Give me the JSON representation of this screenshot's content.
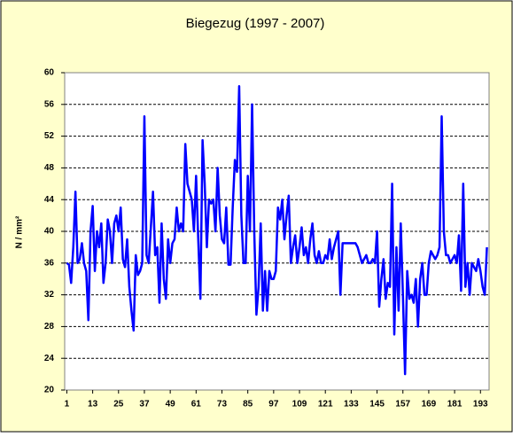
{
  "chart_data": {
    "type": "line",
    "title": "Biegezug (1997 - 2007)",
    "y_label": "N / mm²",
    "x": [
      1,
      2,
      3,
      4,
      5,
      6,
      7,
      8,
      9,
      10,
      11,
      12,
      13,
      14,
      15,
      16,
      17,
      18,
      19,
      20,
      21,
      22,
      23,
      24,
      25,
      26,
      27,
      28,
      29,
      30,
      31,
      32,
      33,
      34,
      35,
      36,
      37,
      38,
      39,
      40,
      41,
      42,
      43,
      44,
      45,
      46,
      47,
      48,
      49,
      50,
      51,
      52,
      53,
      54,
      55,
      56,
      57,
      58,
      59,
      60,
      61,
      62,
      63,
      64,
      65,
      66,
      67,
      68,
      69,
      70,
      71,
      72,
      73,
      74,
      75,
      76,
      77,
      78,
      79,
      80,
      81,
      82,
      83,
      84,
      85,
      86,
      87,
      88,
      89,
      90,
      91,
      92,
      93,
      94,
      95,
      96,
      97,
      98,
      99,
      100,
      101,
      102,
      103,
      104,
      105,
      106,
      107,
      108,
      109,
      110,
      111,
      112,
      113,
      114,
      115,
      116,
      117,
      118,
      119,
      120,
      121,
      122,
      123,
      124,
      125,
      126,
      127,
      128,
      129,
      130,
      131,
      132,
      133,
      134,
      135,
      136,
      137,
      138,
      139,
      140,
      141,
      142,
      143,
      144,
      145,
      146,
      147,
      148,
      149,
      150,
      151,
      152,
      153,
      154,
      155,
      156,
      157,
      158,
      159,
      160,
      161,
      162,
      163,
      164,
      165,
      166,
      167,
      168,
      169,
      170,
      171,
      172,
      173,
      174,
      175,
      176,
      177,
      178,
      179,
      180,
      181,
      182,
      183,
      184,
      185,
      186,
      187,
      188,
      189,
      190,
      191,
      192,
      193,
      194,
      195,
      196
    ],
    "series": [
      {
        "name": "Biegezug",
        "color": "#0000ff",
        "values": [
          36,
          35.8,
          33.5,
          38,
          45,
          36,
          36.5,
          38.5,
          36,
          35,
          28.8,
          40,
          43.2,
          35,
          40,
          38,
          41,
          33.5,
          36,
          41.5,
          40,
          36,
          41,
          42,
          40,
          43,
          36.5,
          35.5,
          39,
          33,
          30,
          27.5,
          37,
          34.5,
          35,
          36,
          54.5,
          37,
          36,
          40.5,
          45,
          37,
          38,
          31,
          41,
          34,
          31.5,
          39,
          36,
          38.5,
          39,
          43,
          40,
          41,
          40,
          51,
          46,
          45,
          44,
          40,
          47,
          39,
          31.5,
          51.5,
          46,
          38,
          44,
          43.5,
          44,
          40,
          48,
          42,
          39,
          38.5,
          43,
          35.8,
          35.8,
          43,
          49,
          47.5,
          58.3,
          42,
          36,
          36,
          47,
          40,
          56,
          40,
          29.5,
          33,
          41,
          30,
          35,
          30,
          35,
          34,
          34,
          35,
          43,
          41.5,
          44,
          39,
          42,
          44.5,
          36,
          38,
          39.5,
          36,
          38,
          40.5,
          37,
          38,
          36,
          39,
          41,
          37,
          36,
          37.5,
          36,
          36,
          37,
          36.5,
          39,
          36.5,
          38,
          39,
          40,
          32,
          38.5,
          38.5,
          38.5,
          38.5,
          38.5,
          38.5,
          38.5,
          38,
          37,
          36,
          36.5,
          37,
          36,
          36,
          36.5,
          36,
          40,
          30.5,
          34,
          36.5,
          31.5,
          33.5,
          33,
          46,
          27,
          38,
          30,
          41,
          32,
          22,
          35,
          31.5,
          32,
          31,
          34,
          28,
          34,
          36,
          32,
          32,
          36,
          37.5,
          37,
          36.5,
          37,
          38,
          54.5,
          40,
          37,
          37,
          36,
          36.5,
          37,
          36,
          39.5,
          32.5,
          46,
          33,
          36,
          32,
          36,
          35.5,
          35,
          36.5,
          35,
          33,
          32,
          38
        ]
      }
    ],
    "xlim": [
      0,
      197
    ],
    "xticks": [
      1,
      13,
      25,
      37,
      49,
      61,
      73,
      85,
      97,
      109,
      121,
      133,
      145,
      157,
      169,
      181,
      193
    ],
    "ylim": [
      20,
      60
    ],
    "yticks": [
      20,
      24,
      28,
      32,
      36,
      40,
      44,
      48,
      52,
      56,
      60
    ],
    "grid": true
  }
}
